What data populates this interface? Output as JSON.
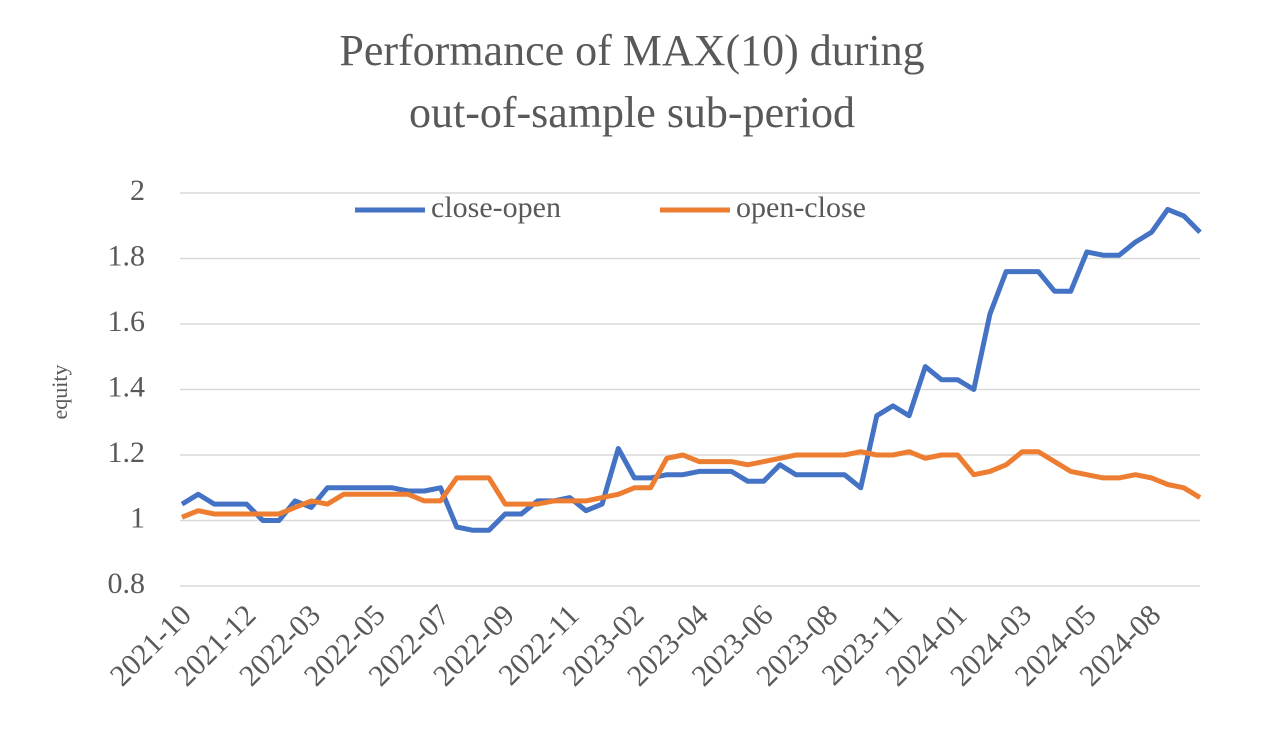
{
  "chart_data": {
    "type": "line",
    "title": [
      "Performance of MAX(10) during",
      "out-of-sample sub-period"
    ],
    "y_label": "equity",
    "categories": [
      "2021-10",
      null,
      null,
      null,
      "2021-12",
      null,
      null,
      null,
      "2022-03",
      null,
      null,
      null,
      "2022-05",
      null,
      null,
      null,
      "2022-07",
      null,
      null,
      null,
      "2022-09",
      null,
      null,
      null,
      "2022-11",
      null,
      null,
      null,
      "2023-02",
      null,
      null,
      null,
      "2023-04",
      null,
      null,
      null,
      "2023-06",
      null,
      null,
      null,
      "2023-08",
      null,
      null,
      null,
      "2023-11",
      null,
      null,
      null,
      "2024-01",
      null,
      null,
      null,
      "2024-03",
      null,
      null,
      null,
      "2024-05",
      null,
      null,
      null,
      "2024-08",
      null,
      null,
      null
    ],
    "series": [
      {
        "name": "close-open",
        "color": "#4472c4",
        "values": [
          1.05,
          1.08,
          1.05,
          1.05,
          1.05,
          1.0,
          1.0,
          1.06,
          1.04,
          1.1,
          1.1,
          1.1,
          1.1,
          1.1,
          1.09,
          1.09,
          1.1,
          0.98,
          0.97,
          0.97,
          1.02,
          1.02,
          1.06,
          1.06,
          1.07,
          1.03,
          1.05,
          1.22,
          1.13,
          1.13,
          1.14,
          1.14,
          1.15,
          1.15,
          1.15,
          1.12,
          1.12,
          1.17,
          1.14,
          1.14,
          1.14,
          1.14,
          1.1,
          1.32,
          1.35,
          1.32,
          1.47,
          1.43,
          1.43,
          1.4,
          1.63,
          1.76,
          1.76,
          1.76,
          1.7,
          1.7,
          1.82,
          1.81,
          1.81,
          1.85,
          1.88,
          1.95,
          1.93,
          1.88
        ]
      },
      {
        "name": "open-close",
        "color": "#ed7d31",
        "values": [
          1.01,
          1.03,
          1.02,
          1.02,
          1.02,
          1.02,
          1.02,
          1.04,
          1.06,
          1.05,
          1.08,
          1.08,
          1.08,
          1.08,
          1.08,
          1.06,
          1.06,
          1.13,
          1.13,
          1.13,
          1.05,
          1.05,
          1.05,
          1.06,
          1.06,
          1.06,
          1.07,
          1.08,
          1.1,
          1.1,
          1.19,
          1.2,
          1.18,
          1.18,
          1.18,
          1.17,
          1.18,
          1.19,
          1.2,
          1.2,
          1.2,
          1.2,
          1.21,
          1.2,
          1.2,
          1.21,
          1.19,
          1.2,
          1.2,
          1.14,
          1.15,
          1.17,
          1.21,
          1.21,
          1.18,
          1.15,
          1.14,
          1.13,
          1.13,
          1.14,
          1.13,
          1.11,
          1.1,
          1.07
        ]
      }
    ],
    "ylim": [
      0.8,
      2
    ],
    "yticks": [
      0.8,
      1,
      1.2,
      1.4,
      1.6,
      1.8,
      2
    ],
    "grid": true,
    "legend": "top"
  }
}
